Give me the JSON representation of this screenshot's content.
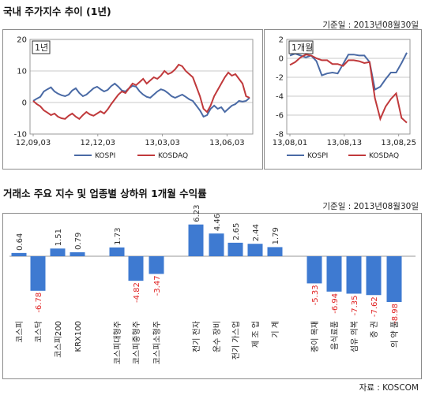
{
  "section1": {
    "title": "국내 주가지수 추이 (1년)",
    "basis": "기준일 : 2013년08월30일"
  },
  "section2": {
    "title": "거래소 주요 지수 및 업종별 상하위 1개월 수익률",
    "basis": "기준일 : 2013년08월30일"
  },
  "source": "자료 : KOSCOM",
  "chart_data": [
    {
      "type": "line",
      "title": "1년",
      "x_ticks": [
        "12,09,03",
        "12,12,03",
        "13,03,03",
        "13,06,03"
      ],
      "ylim": [
        -10,
        20
      ],
      "y_ticks": [
        -10,
        0,
        10,
        20
      ],
      "grid": true,
      "legend_position": "bottom",
      "series": [
        {
          "name": "KOSPI",
          "color": "#4a6aa5",
          "values": [
            0.5,
            1.2,
            1.8,
            3.5,
            4.2,
            4.8,
            3.5,
            2.8,
            2.3,
            2.0,
            2.5,
            3.8,
            4.5,
            3.0,
            2.0,
            2.5,
            3.5,
            4.5,
            5.0,
            4.2,
            3.5,
            4.0,
            5.2,
            6.0,
            5.0,
            3.8,
            3.5,
            4.5,
            5.3,
            5.0,
            3.5,
            2.5,
            1.8,
            1.5,
            2.5,
            3.5,
            4.2,
            3.8,
            3.0,
            2.0,
            1.5,
            2.0,
            2.5,
            1.8,
            1.0,
            0.5,
            -1.0,
            -2.5,
            -4.5,
            -4.0,
            -2.0,
            -1.0,
            -2.0,
            -1.5,
            -3.0,
            -2.0,
            -1.0,
            -0.5,
            0.5,
            0.3,
            0.5,
            1.5
          ]
        },
        {
          "name": "KOSDAQ",
          "color": "#c0393b",
          "values": [
            0.5,
            -0.5,
            -1.2,
            -2.5,
            -3.2,
            -4.0,
            -3.5,
            -4.5,
            -5.0,
            -5.2,
            -4.2,
            -3.5,
            -4.5,
            -5.2,
            -4.0,
            -3.0,
            -3.8,
            -4.2,
            -3.5,
            -2.8,
            -3.5,
            -2.2,
            -0.5,
            1.0,
            2.5,
            3.5,
            3.0,
            4.5,
            6.0,
            5.5,
            6.5,
            7.5,
            6.0,
            7.0,
            8.0,
            7.5,
            8.5,
            10.0,
            9.0,
            9.5,
            10.5,
            12.0,
            11.5,
            10.0,
            9.0,
            8.0,
            5.0,
            2.0,
            -2.0,
            -3.0,
            -1.0,
            2.0,
            4.0,
            6.0,
            8.0,
            9.5,
            8.5,
            9.0,
            7.5,
            6.0,
            2.0,
            1.5
          ]
        }
      ]
    },
    {
      "type": "line",
      "title": "1개월",
      "x_ticks": [
        "13,08,01",
        "13,08,13",
        "13,08,25"
      ],
      "ylim": [
        -8,
        2
      ],
      "y_ticks": [
        -8,
        -6,
        -4,
        -2,
        0,
        2
      ],
      "grid": true,
      "legend_position": "bottom",
      "series": [
        {
          "name": "KOSPI",
          "color": "#4a6aa5",
          "values": [
            0.3,
            0.5,
            0.3,
            0.1,
            0.3,
            -0.3,
            -1.8,
            -1.6,
            -1.5,
            -1.6,
            -0.6,
            0.4,
            0.4,
            0.3,
            0.3,
            -0.4,
            -3.3,
            -3.0,
            -2.2,
            -1.5,
            -1.5,
            -0.5,
            0.6
          ]
        },
        {
          "name": "KOSDAQ",
          "color": "#c0393b",
          "values": [
            -0.7,
            -0.4,
            0.1,
            0.4,
            0.3,
            0.0,
            -0.2,
            -0.2,
            -0.6,
            -0.6,
            -0.8,
            -0.2,
            -0.2,
            -0.3,
            -0.5,
            -0.4,
            -4.2,
            -6.4,
            -5.1,
            -4.3,
            -3.7,
            -6.3,
            -6.8
          ]
        }
      ]
    },
    {
      "type": "bar",
      "value_unit": "%",
      "categories": [
        "코스피",
        "코스닥",
        "코스피200",
        "KRX100",
        "코스피대형주",
        "코스피중형주",
        "코스피소형주",
        "전기 전자",
        "운수 장비",
        "전기 가스업",
        "제 조 업",
        "기 계",
        "종이 목재",
        "음식료품",
        "섬유 의복",
        "증 권",
        "의 약 품"
      ],
      "values": [
        0.64,
        -6.78,
        1.51,
        0.79,
        1.73,
        -4.82,
        -3.47,
        6.23,
        4.46,
        2.65,
        2.44,
        1.79,
        -5.33,
        -6.94,
        -7.35,
        -7.62,
        -8.98
      ],
      "positive_label_color": "#333333",
      "negative_label_color": "#e02020",
      "bar_color": "#3e7ad1"
    }
  ]
}
